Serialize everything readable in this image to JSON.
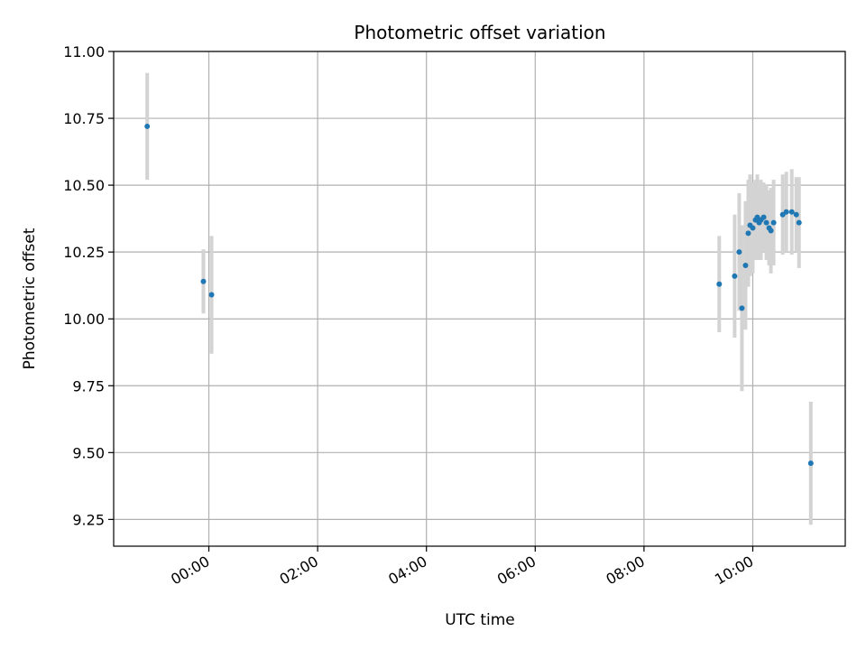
{
  "chart_data": {
    "type": "scatter",
    "title": "Photometric offset variation",
    "xlabel": "UTC time",
    "ylabel": "Photometric offset",
    "x_axis_kind": "time",
    "xlim": [
      "-01:45",
      "11:42"
    ],
    "ylim": [
      9.15,
      11.0
    ],
    "x_ticks": [
      "00:00",
      "02:00",
      "04:00",
      "06:00",
      "08:00",
      "10:00"
    ],
    "y_ticks": [
      "9.25",
      "9.50",
      "9.75",
      "10.00",
      "10.25",
      "10.50",
      "10.75",
      "11.00"
    ],
    "grid": true,
    "colors": {
      "point": "#1f77b4",
      "errorbar": "#d3d3d3",
      "grid": "#b0b0b0"
    },
    "points": [
      {
        "x": "-01:08",
        "y": 10.72,
        "yerr": 0.2
      },
      {
        "x": "-00:06",
        "y": 10.14,
        "yerr": 0.12
      },
      {
        "x": "00:03",
        "y": 10.09,
        "yerr": 0.22
      },
      {
        "x": "09:23",
        "y": 10.13,
        "yerr": 0.18
      },
      {
        "x": "09:40",
        "y": 10.16,
        "yerr": 0.23
      },
      {
        "x": "09:45",
        "y": 10.25,
        "yerr": 0.22
      },
      {
        "x": "09:48",
        "y": 10.04,
        "yerr": 0.31
      },
      {
        "x": "09:52",
        "y": 10.2,
        "yerr": 0.24
      },
      {
        "x": "09:55",
        "y": 10.32,
        "yerr": 0.2
      },
      {
        "x": "09:57",
        "y": 10.35,
        "yerr": 0.19
      },
      {
        "x": "10:00",
        "y": 10.34,
        "yerr": 0.17
      },
      {
        "x": "10:03",
        "y": 10.37,
        "yerr": 0.15
      },
      {
        "x": "10:05",
        "y": 10.38,
        "yerr": 0.16
      },
      {
        "x": "10:07",
        "y": 10.36,
        "yerr": 0.14
      },
      {
        "x": "10:09",
        "y": 10.37,
        "yerr": 0.15
      },
      {
        "x": "10:12",
        "y": 10.38,
        "yerr": 0.13
      },
      {
        "x": "10:15",
        "y": 10.36,
        "yerr": 0.14
      },
      {
        "x": "10:18",
        "y": 10.34,
        "yerr": 0.14
      },
      {
        "x": "10:20",
        "y": 10.33,
        "yerr": 0.16
      },
      {
        "x": "10:23",
        "y": 10.36,
        "yerr": 0.16
      },
      {
        "x": "10:33",
        "y": 10.39,
        "yerr": 0.15
      },
      {
        "x": "10:37",
        "y": 10.4,
        "yerr": 0.15
      },
      {
        "x": "10:43",
        "y": 10.4,
        "yerr": 0.16
      },
      {
        "x": "10:48",
        "y": 10.39,
        "yerr": 0.14
      },
      {
        "x": "10:51",
        "y": 10.36,
        "yerr": 0.17
      },
      {
        "x": "11:04",
        "y": 9.46,
        "yerr": 0.23
      }
    ]
  }
}
